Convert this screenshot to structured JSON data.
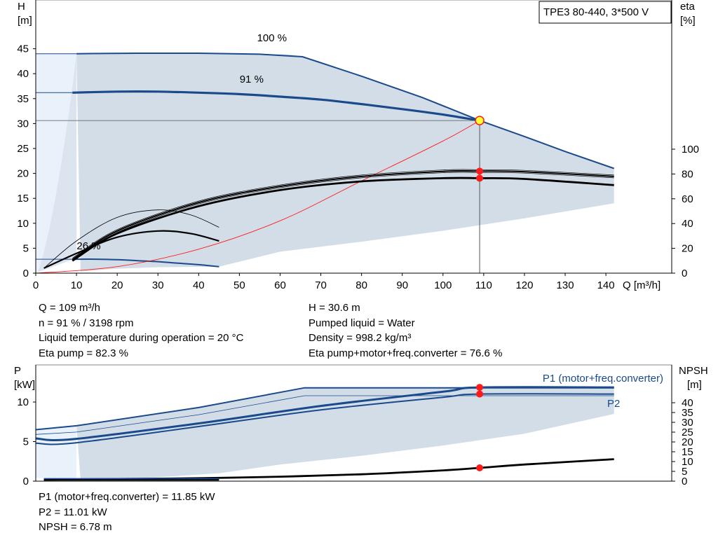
{
  "title_box": "TPE3 80-440, 3*500 V",
  "colors": {
    "curve_blue": "#1a4a8c",
    "area_fill": "#d3dde7",
    "area_light": "#e9f1fa",
    "red": "#ff1a1a",
    "duty_yellow": "#ffff33",
    "black": "#000000"
  },
  "chart_data": [
    {
      "type": "line",
      "id": "qh",
      "xlabel": "Q [m³/h]",
      "ylabel": [
        "H",
        "[m]"
      ],
      "y2label": [
        "eta",
        "[%]"
      ],
      "xlim": [
        0,
        145
      ],
      "ylim": [
        0,
        50
      ],
      "y2lim": [
        0,
        125
      ],
      "xticks": [
        0,
        10,
        20,
        30,
        40,
        50,
        60,
        70,
        80,
        90,
        100,
        110,
        120,
        130,
        140
      ],
      "yticks": [
        0,
        5,
        10,
        15,
        20,
        25,
        30,
        35,
        40,
        45
      ],
      "y2ticks": [
        0,
        20,
        40,
        60,
        80,
        100
      ],
      "grid": false,
      "annotations": [
        {
          "text": "100 %",
          "x": 58,
          "y": 46.5
        },
        {
          "text": "91 %",
          "x": 53,
          "y": 38.2
        },
        {
          "text": "26 %",
          "x": 13,
          "y": 4.8
        }
      ],
      "series": [
        {
          "role": "H 100 % speed",
          "x": [
            10,
            25,
            40,
            55,
            65.5,
            80,
            95,
            109,
            120,
            130,
            142
          ],
          "y": [
            44,
            44.1,
            44.1,
            43.9,
            43.4,
            39.5,
            35.2,
            30.6,
            27.4,
            24.4,
            21
          ]
        },
        {
          "role": "H 91 % speed",
          "x": [
            9,
            20,
            30,
            40,
            50,
            60,
            70,
            80,
            90,
            100,
            109
          ],
          "y": [
            36.2,
            36.4,
            36.4,
            36.2,
            35.9,
            35.4,
            34.8,
            33.9,
            32.9,
            31.8,
            30.6
          ]
        },
        {
          "role": "H 26 % speed",
          "x": [
            9,
            15,
            20,
            25,
            30,
            35,
            40,
            45
          ],
          "y": [
            2.8,
            2.8,
            2.7,
            2.5,
            2.3,
            2.0,
            1.7,
            1.3
          ]
        },
        {
          "role": "system curve",
          "x": [
            0,
            20,
            40,
            60,
            80,
            100,
            109
          ],
          "y": [
            0,
            1.3,
            4.8,
            10.5,
            18.5,
            26.5,
            30.6
          ]
        },
        {
          "role": "eta pump+motor+freq.converter",
          "y_axis": "eta",
          "x": [
            9,
            20,
            40,
            60,
            80,
            100,
            109,
            120,
            142
          ],
          "y": [
            10,
            32,
            54,
            67,
            74,
            76.6,
            76.6,
            76,
            71
          ]
        },
        {
          "role": "eta pump",
          "y_axis": "eta",
          "x": [
            9,
            20,
            40,
            60,
            80,
            100,
            109,
            120,
            142
          ],
          "y": [
            11,
            34,
            57,
            70,
            78,
            82.1,
            82.3,
            81.8,
            78
          ]
        },
        {
          "role": "eta 26 % speed",
          "y_axis": "eta",
          "x": [
            2,
            10,
            20,
            30,
            38,
            45
          ],
          "y": [
            4,
            16,
            29,
            34,
            32,
            26
          ]
        },
        {
          "role": "eta thin curve",
          "y_axis": "eta",
          "x": [
            2,
            10,
            20,
            30,
            38,
            45
          ],
          "y": [
            4,
            26,
            45,
            51,
            47,
            37
          ]
        }
      ],
      "duty_point": {
        "x": 109,
        "H": 30.6,
        "eta_points": [
          82.3,
          76.6
        ]
      }
    },
    {
      "type": "line",
      "id": "power",
      "ylabel": [
        "P",
        "[kW]"
      ],
      "y2label": [
        "NPSH",
        "[m]"
      ],
      "xlim": [
        0,
        145
      ],
      "ylim": [
        0,
        13
      ],
      "y2lim": [
        0,
        50
      ],
      "yticks": [
        0,
        5,
        10
      ],
      "y2ticks": [
        0,
        5,
        10,
        15,
        20,
        25,
        30,
        35,
        40
      ],
      "grid": false,
      "annotations": [
        {
          "text": "P1 (motor+freq.converter)",
          "x": 120,
          "y": 12.6
        },
        {
          "text": "P2",
          "x": 141,
          "y": 8.8
        }
      ],
      "series": [
        {
          "role": "P1 max",
          "x": [
            0,
            10,
            40,
            66,
            109,
            142
          ],
          "y": [
            6.5,
            7,
            9.3,
            11.8,
            11.8,
            11.8
          ]
        },
        {
          "role": "P1 at 91 %",
          "x": [
            0,
            9,
            40,
            70,
            100,
            109,
            142
          ],
          "y": [
            5.4,
            5.3,
            7.3,
            9.5,
            11.3,
            11.85,
            11.85
          ]
        },
        {
          "role": "P2 at 91 %",
          "x": [
            0,
            9,
            40,
            70,
            100,
            109,
            142
          ],
          "y": [
            4.8,
            4.8,
            6.9,
            9.0,
            10.6,
            11.01,
            11.01
          ]
        },
        {
          "role": "NPSH",
          "y_axis": "NPSH",
          "x": [
            2,
            20,
            40,
            60,
            80,
            100,
            109,
            120,
            142
          ],
          "y": [
            0.8,
            1.1,
            1.5,
            2.3,
            3.5,
            5.5,
            6.78,
            8.5,
            11.2
          ]
        },
        {
          "role": "P 26 %",
          "x": [
            2,
            15,
            30,
            45
          ],
          "y": [
            0.3,
            0.3,
            0.3,
            0.3
          ]
        }
      ],
      "duty_point": {
        "x": 109,
        "P1": 11.85,
        "P2": 11.01,
        "NPSH": 6.78
      }
    }
  ],
  "info_top_left": [
    "Q = 109 m³/h",
    "n = 91 % / 3198 rpm",
    "Liquid temperature during operation = 20 °C",
    "Eta pump = 82.3 %"
  ],
  "info_top_right": [
    "H = 30.6 m",
    "Pumped liquid = Water",
    "Density = 998.2 kg/m³",
    "Eta pump+motor+freq.converter = 76.6 %"
  ],
  "info_bottom": [
    "P1 (motor+freq.converter) = 11.85 kW",
    "P2 = 11.01 kW",
    "NPSH = 6.78 m"
  ]
}
